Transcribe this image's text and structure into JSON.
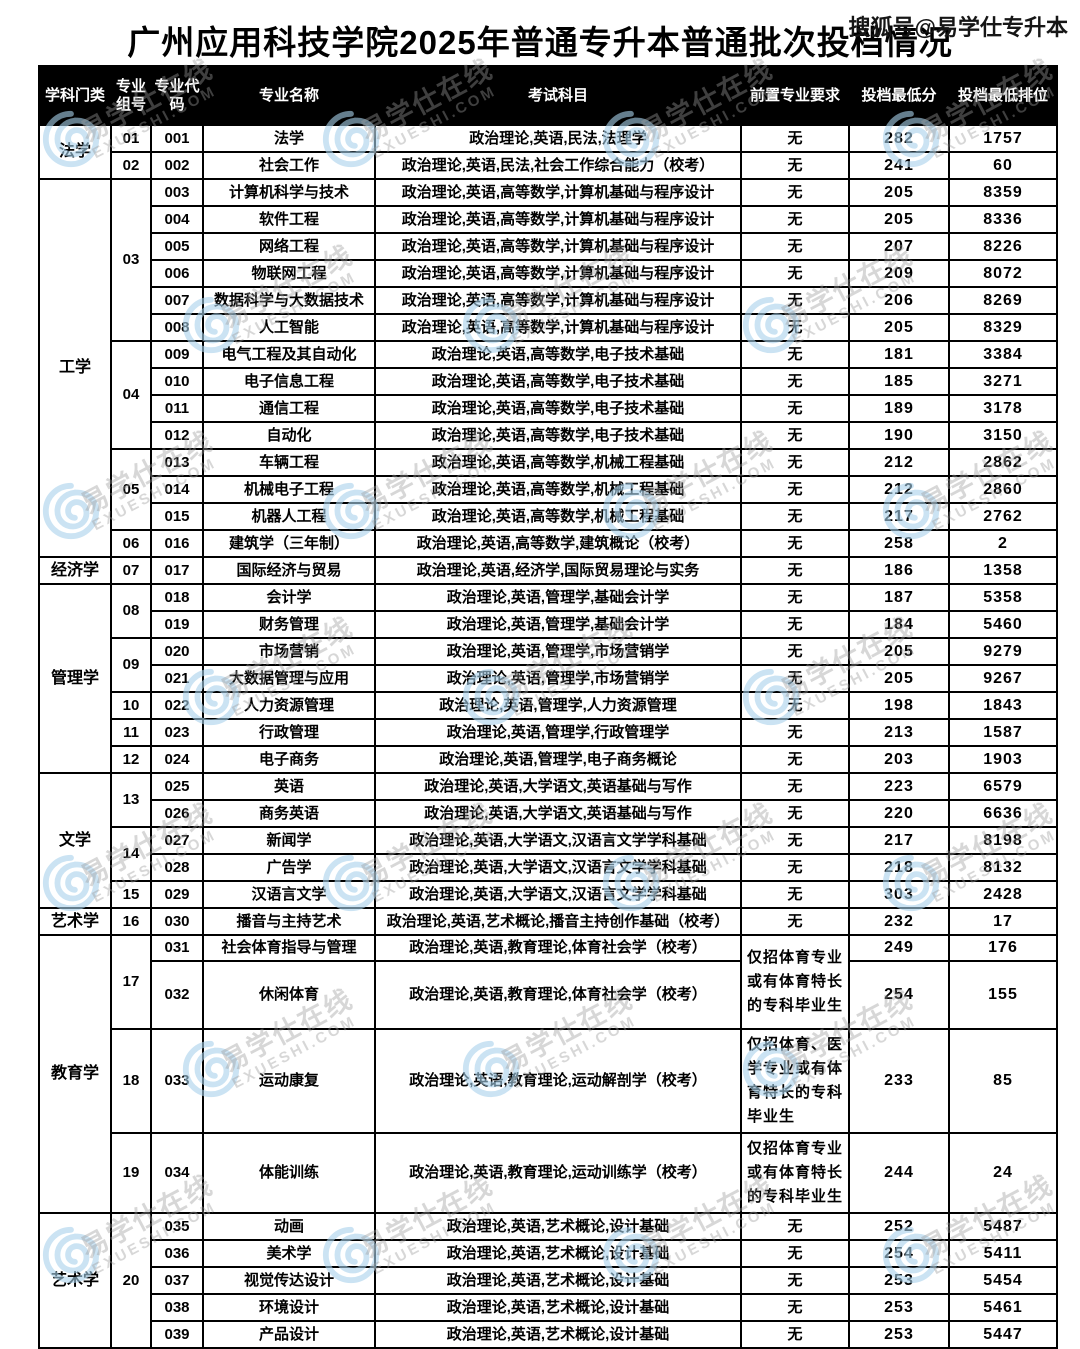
{
  "page": {
    "title": "广州应用科技学院2025年普通专升本普通批次投档情况",
    "corner_watermark": "搜狐号@易学仕专升本",
    "watermark": {
      "main_text": "易学仕在线",
      "sub_text": "EXUESHI.COM",
      "spiral_color": "#a9d2ec",
      "text_color": "#9d9d9d"
    },
    "colors": {
      "header_bg": "#000000",
      "header_text": "#ffffff",
      "border": "#000000",
      "body_text": "#000000"
    }
  },
  "table": {
    "columns": [
      "学科门类",
      "专业组号",
      "专业代码",
      "专业名称",
      "考试科目",
      "前置专业要求",
      "投档最低分",
      "投档最低排位"
    ],
    "rows": [
      {
        "category": "法学",
        "category_span": 2,
        "group": "01",
        "code": "001",
        "major": "法学",
        "subjects": "政治理论,英语,民法,法理学",
        "prereq": "无",
        "min_score": "282",
        "min_rank": "1757"
      },
      {
        "group": "02",
        "code": "002",
        "major": "社会工作",
        "subjects": "政治理论,英语,民法,社会工作综合能力（校考）",
        "prereq": "无",
        "min_score": "241",
        "min_rank": "60"
      },
      {
        "category": "工学",
        "category_span": 14,
        "group": "03",
        "group_span": 6,
        "code": "003",
        "major": "计算机科学与技术",
        "subjects": "政治理论,英语,高等数学,计算机基础与程序设计",
        "prereq": "无",
        "min_score": "205",
        "min_rank": "8359"
      },
      {
        "code": "004",
        "major": "软件工程",
        "subjects": "政治理论,英语,高等数学,计算机基础与程序设计",
        "prereq": "无",
        "min_score": "205",
        "min_rank": "8336"
      },
      {
        "code": "005",
        "major": "网络工程",
        "subjects": "政治理论,英语,高等数学,计算机基础与程序设计",
        "prereq": "无",
        "min_score": "207",
        "min_rank": "8226"
      },
      {
        "code": "006",
        "major": "物联网工程",
        "subjects": "政治理论,英语,高等数学,计算机基础与程序设计",
        "prereq": "无",
        "min_score": "209",
        "min_rank": "8072"
      },
      {
        "code": "007",
        "major": "数据科学与大数据技术",
        "subjects": "政治理论,英语,高等数学,计算机基础与程序设计",
        "prereq": "无",
        "min_score": "206",
        "min_rank": "8269"
      },
      {
        "code": "008",
        "major": "人工智能",
        "subjects": "政治理论,英语,高等数学,计算机基础与程序设计",
        "prereq": "无",
        "min_score": "205",
        "min_rank": "8329"
      },
      {
        "group": "04",
        "group_span": 4,
        "code": "009",
        "major": "电气工程及其自动化",
        "subjects": "政治理论,英语,高等数学,电子技术基础",
        "prereq": "无",
        "min_score": "181",
        "min_rank": "3384"
      },
      {
        "code": "010",
        "major": "电子信息工程",
        "subjects": "政治理论,英语,高等数学,电子技术基础",
        "prereq": "无",
        "min_score": "185",
        "min_rank": "3271"
      },
      {
        "code": "011",
        "major": "通信工程",
        "subjects": "政治理论,英语,高等数学,电子技术基础",
        "prereq": "无",
        "min_score": "189",
        "min_rank": "3178"
      },
      {
        "code": "012",
        "major": "自动化",
        "subjects": "政治理论,英语,高等数学,电子技术基础",
        "prereq": "无",
        "min_score": "190",
        "min_rank": "3150"
      },
      {
        "group": "05",
        "group_span": 3,
        "code": "013",
        "major": "车辆工程",
        "subjects": "政治理论,英语,高等数学,机械工程基础",
        "prereq": "无",
        "min_score": "212",
        "min_rank": "2862"
      },
      {
        "code": "014",
        "major": "机械电子工程",
        "subjects": "政治理论,英语,高等数学,机械工程基础",
        "prereq": "无",
        "min_score": "212",
        "min_rank": "2860"
      },
      {
        "code": "015",
        "major": "机器人工程",
        "subjects": "政治理论,英语,高等数学,机械工程基础",
        "prereq": "无",
        "min_score": "217",
        "min_rank": "2762"
      },
      {
        "group": "06",
        "code": "016",
        "major": "建筑学（三年制）",
        "subjects": "政治理论,英语,高等数学,建筑概论（校考）",
        "prereq": "无",
        "min_score": "258",
        "min_rank": "2"
      },
      {
        "category": "经济学",
        "category_span": 1,
        "group": "07",
        "code": "017",
        "major": "国际经济与贸易",
        "subjects": "政治理论,英语,经济学,国际贸易理论与实务",
        "prereq": "无",
        "min_score": "186",
        "min_rank": "1358"
      },
      {
        "category": "管理学",
        "category_span": 7,
        "group": "08",
        "group_span": 2,
        "code": "018",
        "major": "会计学",
        "subjects": "政治理论,英语,管理学,基础会计学",
        "prereq": "无",
        "min_score": "187",
        "min_rank": "5358"
      },
      {
        "code": "019",
        "major": "财务管理",
        "subjects": "政治理论,英语,管理学,基础会计学",
        "prereq": "无",
        "min_score": "184",
        "min_rank": "5460"
      },
      {
        "group": "09",
        "group_span": 2,
        "code": "020",
        "major": "市场营销",
        "subjects": "政治理论,英语,管理学,市场营销学",
        "prereq": "无",
        "min_score": "205",
        "min_rank": "9279"
      },
      {
        "code": "021",
        "major": "大数据管理与应用",
        "subjects": "政治理论,英语,管理学,市场营销学",
        "prereq": "无",
        "min_score": "205",
        "min_rank": "9267"
      },
      {
        "group": "10",
        "code": "022",
        "major": "人力资源管理",
        "subjects": "政治理论,英语,管理学,人力资源管理",
        "prereq": "无",
        "min_score": "198",
        "min_rank": "1843"
      },
      {
        "group": "11",
        "code": "023",
        "major": "行政管理",
        "subjects": "政治理论,英语,管理学,行政管理学",
        "prereq": "无",
        "min_score": "213",
        "min_rank": "1587"
      },
      {
        "group": "12",
        "code": "024",
        "major": "电子商务",
        "subjects": "政治理论,英语,管理学,电子商务概论",
        "prereq": "无",
        "min_score": "203",
        "min_rank": "1903"
      },
      {
        "category": "文学",
        "category_span": 5,
        "group": "13",
        "group_span": 2,
        "code": "025",
        "major": "英语",
        "subjects": "政治理论,英语,大学语文,英语基础与写作",
        "prereq": "无",
        "min_score": "223",
        "min_rank": "6579"
      },
      {
        "code": "026",
        "major": "商务英语",
        "subjects": "政治理论,英语,大学语文,英语基础与写作",
        "prereq": "无",
        "min_score": "220",
        "min_rank": "6636"
      },
      {
        "group": "14",
        "group_span": 2,
        "code": "027",
        "major": "新闻学",
        "subjects": "政治理论,英语,大学语文,汉语言文学学科基础",
        "prereq": "无",
        "min_score": "217",
        "min_rank": "8198"
      },
      {
        "code": "028",
        "major": "广告学",
        "subjects": "政治理论,英语,大学语文,汉语言文学学科基础",
        "prereq": "无",
        "min_score": "218",
        "min_rank": "8132"
      },
      {
        "group": "15",
        "code": "029",
        "major": "汉语言文学",
        "subjects": "政治理论,英语,大学语文,汉语言文学学科基础",
        "prereq": "无",
        "min_score": "303",
        "min_rank": "2428"
      },
      {
        "category": "艺术学",
        "category_span": 1,
        "group": "16",
        "code": "030",
        "major": "播音与主持艺术",
        "subjects": "政治理论,英语,艺术概论,播音主持创作基础（校考）",
        "prereq": "无",
        "min_score": "232",
        "min_rank": "17"
      },
      {
        "category": "教育学",
        "category_span": 4,
        "group": "17",
        "group_span": 2,
        "code": "031",
        "major": "社会体育指导与管理",
        "subjects": "政治理论,英语,教育理论,体育社会学（校考）",
        "prereq": "仅招体育专业或有体育特长的专科毕业生",
        "prereq_span": 2,
        "min_score": "249",
        "min_rank": "176"
      },
      {
        "code": "032",
        "major": "休闲体育",
        "subjects": "政治理论,英语,教育理论,体育社会学（校考）",
        "min_score": "254",
        "min_rank": "155"
      },
      {
        "group": "18",
        "code": "033",
        "major": "运动康复",
        "subjects": "政治理论,英语,教育理论,运动解剖学（校考）",
        "prereq": "仅招体育、医学专业或有体育特长的专科毕业生",
        "min_score": "233",
        "min_rank": "85"
      },
      {
        "group": "19",
        "code": "034",
        "major": "体能训练",
        "subjects": "政治理论,英语,教育理论,运动训练学（校考）",
        "prereq": "仅招体育专业或有体育特长的专科毕业生",
        "min_score": "244",
        "min_rank": "24"
      },
      {
        "category": "艺术学",
        "category_span": 5,
        "group": "20",
        "group_span": 5,
        "code": "035",
        "major": "动画",
        "subjects": "政治理论,英语,艺术概论,设计基础",
        "prereq": "无",
        "min_score": "252",
        "min_rank": "5487"
      },
      {
        "code": "036",
        "major": "美术学",
        "subjects": "政治理论,英语,艺术概论,设计基础",
        "prereq": "无",
        "min_score": "254",
        "min_rank": "5411"
      },
      {
        "code": "037",
        "major": "视觉传达设计",
        "subjects": "政治理论,英语,艺术概论,设计基础",
        "prereq": "无",
        "min_score": "253",
        "min_rank": "5454"
      },
      {
        "code": "038",
        "major": "环境设计",
        "subjects": "政治理论,英语,艺术概论,设计基础",
        "prereq": "无",
        "min_score": "253",
        "min_rank": "5461"
      },
      {
        "code": "039",
        "major": "产品设计",
        "subjects": "政治理论,英语,艺术概论,设计基础",
        "prereq": "无",
        "min_score": "253",
        "min_rank": "5447"
      }
    ]
  }
}
